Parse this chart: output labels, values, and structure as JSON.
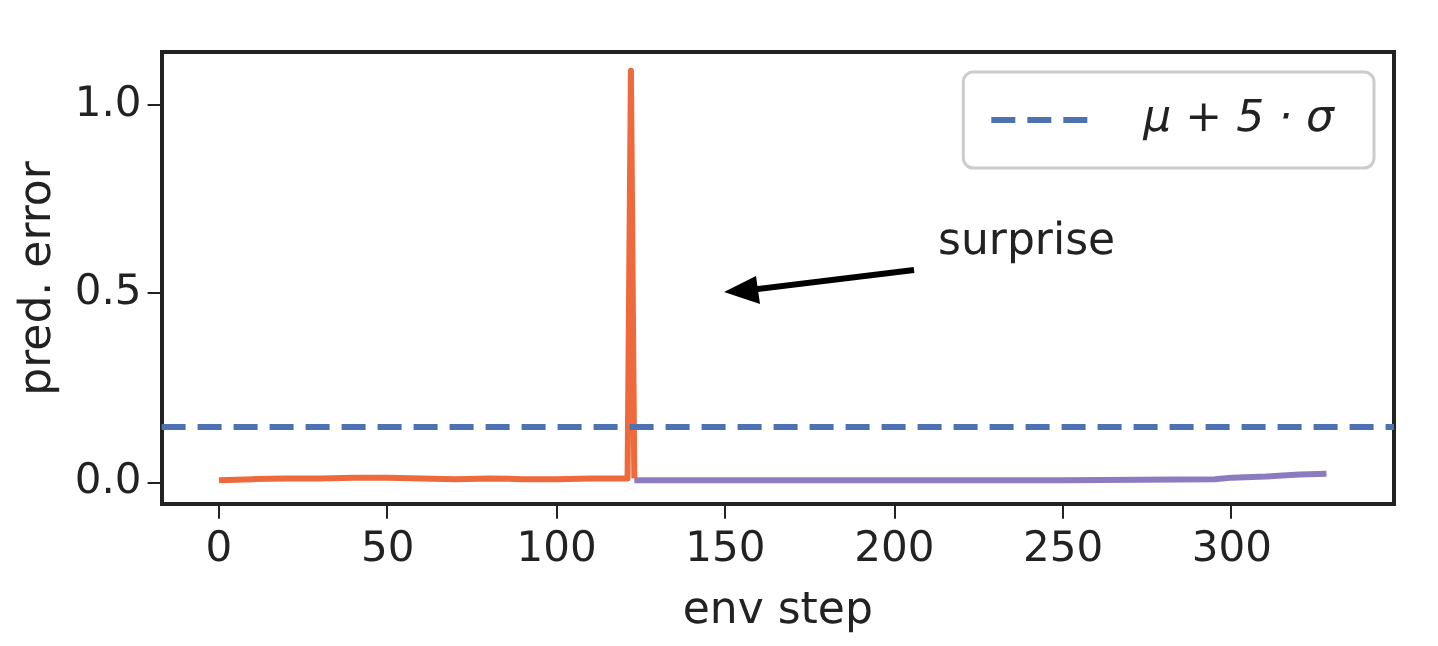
{
  "chart_data": {
    "type": "line",
    "xlabel": "env step",
    "ylabel": "pred. error",
    "series": [
      {
        "color": "#ee6a3c",
        "x": [
          0,
          10,
          20,
          30,
          40,
          50,
          60,
          70,
          80,
          90,
          100,
          110,
          121,
          122,
          123
        ],
        "values": [
          0.005,
          0.008,
          0.01,
          0.01,
          0.012,
          0.012,
          0.01,
          0.008,
          0.01,
          0.008,
          0.008,
          0.01,
          0.01,
          1.09,
          0.01
        ]
      },
      {
        "color": "#8c7bbf",
        "x": [
          123,
          150,
          200,
          250,
          295,
          300,
          310,
          320,
          328
        ],
        "values": [
          0.005,
          0.005,
          0.005,
          0.005,
          0.008,
          0.012,
          0.015,
          0.02,
          0.022
        ]
      }
    ],
    "xlim": [
      -17,
      348
    ],
    "xticks": [
      0,
      50,
      100,
      150,
      200,
      250,
      300
    ],
    "ylim": [
      -0.06,
      1.14
    ],
    "yticks": [
      {
        "value": 0,
        "label": "0.0"
      },
      {
        "value": 0.5,
        "label": "0.5"
      },
      {
        "value": 1,
        "label": "1.0"
      }
    ],
    "ref_lines": [
      {
        "axis": "y",
        "value": 0.146,
        "label": "μ + 5 · σ",
        "color": "#4c72b0",
        "line_style": "dashed"
      }
    ],
    "annotations": [
      "surprise"
    ],
    "grid": false,
    "legend": "top right",
    "marker": "none",
    "line_style": "solid"
  }
}
